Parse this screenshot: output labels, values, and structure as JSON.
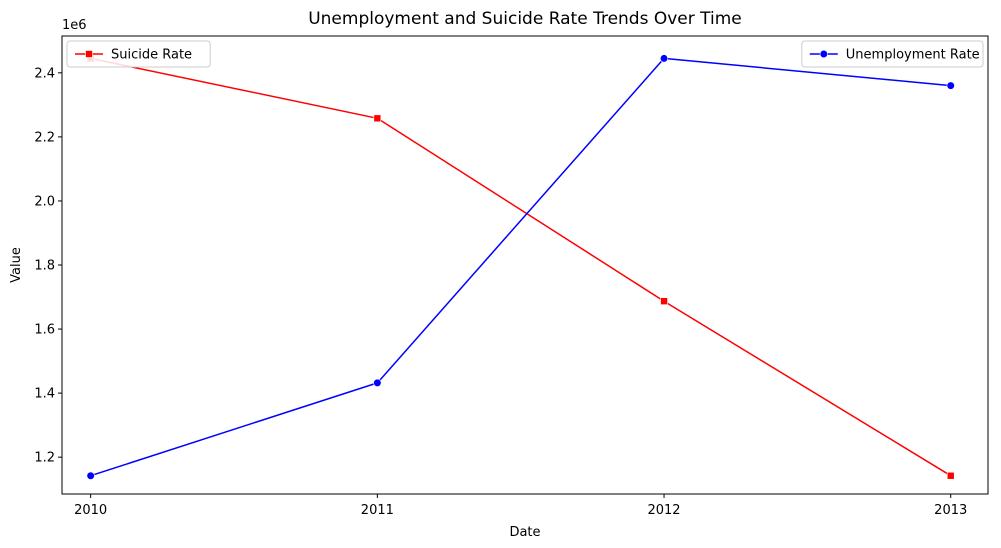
{
  "chart_data": {
    "type": "line",
    "title": "Unemployment and Suicide Rate Trends Over Time",
    "xlabel": "Date",
    "ylabel": "Value",
    "y_multiplier_label": "1e6",
    "x": [
      "2010",
      "2011",
      "2012",
      "2013"
    ],
    "xlim": [
      2009.9,
      2013.13
    ],
    "ylim": [
      1.085,
      2.515
    ],
    "y_ticks": [
      1.2,
      1.4,
      1.6,
      1.8,
      2.0,
      2.2,
      2.4
    ],
    "y_tick_labels": [
      "1.2",
      "1.4",
      "1.6",
      "1.8",
      "2.0",
      "2.2",
      "2.4"
    ],
    "grid": false,
    "series": [
      {
        "name": "Suicide Rate",
        "values": [
          2.445,
          2.258,
          1.687,
          1.142
        ],
        "color": "#ff0000",
        "marker": "square",
        "legend_position": "top-left"
      },
      {
        "name": "Unemployment Rate",
        "values": [
          1.142,
          1.432,
          2.445,
          2.36
        ],
        "color": "#0000ff",
        "marker": "circle",
        "legend_position": "top-right"
      }
    ]
  }
}
